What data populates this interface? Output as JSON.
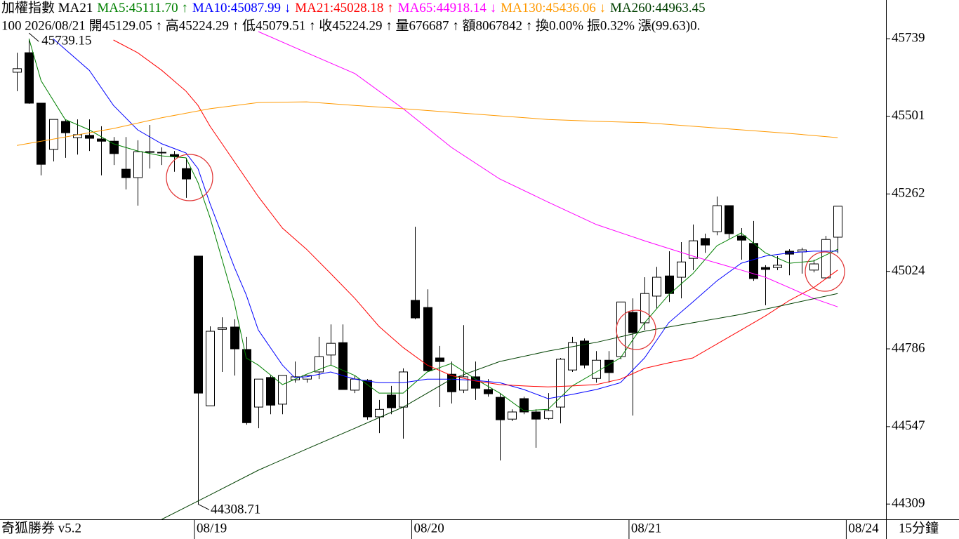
{
  "chart_data": {
    "type": "candlestick",
    "header": [
      {
        "text": "加權指數 MA21",
        "color": "#000000"
      },
      {
        "text": "MA5:45111.70 ↑",
        "color": "#008000"
      },
      {
        "text": "MA10:45087.99 ↓",
        "color": "#0000ff"
      },
      {
        "text": "MA21:45028.18 ↑",
        "color": "#ff0000"
      },
      {
        "text": "MA65:44918.14 ↓",
        "color": "#ff00ff"
      },
      {
        "text": "MA130:45436.06 ↓",
        "color": "#ff9900"
      },
      {
        "text": "MA260:44963.45",
        "color": "#004000"
      }
    ],
    "info": "100 2026/08/21 開45129.05 ↑ 高45224.29 ↑ 低45079.51 ↑ 收45224.29 ↑ 量676687 ↑ 額8067842 ↑ 換0.00% 振0.32% 漲(99.63)0.",
    "watermark": "奇狐勝券 v5.2",
    "period": "15分鐘",
    "annotations": [
      {
        "text": "45739.15",
        "value": 45739.15
      },
      {
        "text": "44308.71",
        "value": 44308.71
      }
    ],
    "up_color": "#ffffff",
    "down_color": "#000000",
    "open": [
      45636,
      45696,
      45541,
      45399,
      45485,
      45435,
      45442,
      45431,
      45424,
      45338,
      45312,
      45392,
      45390,
      45383,
      45340,
      45071,
      44611,
      44846,
      44853,
      44784,
      44607,
      44698,
      44616,
      44691,
      44693,
      44715,
      44767,
      44805,
      44659,
      44689,
      44577,
      44644,
      44607,
      44935,
      44913,
      44758,
      44708,
      44659,
      44700,
      44661,
      44637,
      44570,
      44633,
      44592,
      44572,
      44607,
      44721,
      44810,
      44695,
      44751,
      44762,
      44898,
      44866,
      44948,
      45010,
      45006,
      45064,
      45125,
      45146,
      45226,
      45133,
      45110,
      45036,
      45036,
      45086,
      45084,
      45028,
      45004,
      45129.05
    ],
    "high": [
      45696,
      45739.15,
      45541,
      45491,
      45491,
      45491,
      45491,
      45470,
      45437,
      45437,
      45427,
      45474,
      45405,
      45394,
      45373,
      45071,
      44855,
      44883,
      44877,
      44823,
      44693,
      44704,
      44704,
      44747,
      44704,
      44823,
      44861,
      44861,
      44704,
      44693,
      44629,
      44672,
      44726,
      45161,
      44969,
      44795,
      44747,
      44859,
      44747,
      44693,
      44650,
      44600,
      44639,
      44600,
      44650,
      44758,
      44823,
      44818,
      44779,
      44779,
      44930,
      44941,
      45006,
      45038,
      45086,
      45114,
      45168,
      45140,
      45254,
      45226,
      45157,
      45179,
      45043,
      45071,
      45092,
      45097,
      45060,
      45133,
      45224.29
    ],
    "low": [
      45578,
      45539,
      45319,
      45362,
      45373,
      45383,
      45394,
      45319,
      45351,
      45276,
      45226,
      45340,
      45351,
      45330,
      45250,
      44308.71,
      44611,
      44715,
      44704,
      44553,
      44542,
      44585,
      44585,
      44682,
      44682,
      44693,
      44736,
      44661,
      44650,
      44568,
      44527,
      44585,
      44510,
      44877,
      44715,
      44607,
      44618,
      44650,
      44629,
      44639,
      44443,
      44564,
      44585,
      44482,
      44568,
      44557,
      44715,
      44726,
      44682,
      44682,
      44754,
      44581,
      44844,
      44909,
      44930,
      44941,
      45028,
      45081,
      45135,
      45125,
      45060,
      44995,
      44920,
      45028,
      45012,
      45017,
      45021,
      45000,
      45079.51
    ],
    "close": [
      45647,
      45541,
      45353,
      45491,
      45450,
      45444,
      45433,
      45424,
      45386,
      45312,
      45392,
      45390,
      45388,
      45377,
      45308,
      44650,
      44840,
      44851,
      44786,
      44559,
      44693,
      44613,
      44704,
      44700,
      44704,
      44762,
      44803,
      44661,
      44693,
      44577,
      44600,
      44605,
      44715,
      44881,
      44719,
      44747,
      44654,
      44700,
      44665,
      44648,
      44568,
      44592,
      44592,
      44570,
      44596,
      44754,
      44805,
      44736,
      44751,
      44713,
      44930,
      44836,
      44956,
      45006,
      44956,
      45053,
      45118,
      45105,
      45226,
      45140,
      45120,
      45002,
      45030,
      45043,
      45077,
      45090,
      45047,
      45122,
      45224.29
    ],
    "series": [
      {
        "color": "#008000",
        "x": [
          1,
          2,
          4,
          6,
          8,
          10,
          12,
          14,
          15,
          16,
          17,
          18,
          19,
          20,
          22,
          24,
          26,
          28,
          30,
          32,
          34,
          36,
          38,
          40,
          42,
          44,
          46,
          48,
          50,
          52,
          54,
          56,
          58,
          60,
          62,
          64,
          66,
          68
        ],
        "values": [
          45739,
          45610,
          45491,
          45459,
          45416,
          45394,
          45379,
          45373,
          45297,
          45189,
          45060,
          44930,
          44758,
          44736,
          44676,
          44708,
          44736,
          44704,
          44650,
          44650,
          44715,
          44741,
          44693,
          44650,
          44596,
          44600,
          44672,
          44715,
          44758,
          44866,
          44952,
          45017,
          45103,
          45142,
          45081,
          45049,
          45056,
          45092
        ]
      },
      {
        "color": "#0000ff",
        "x": [
          3,
          6,
          8,
          10,
          12,
          14,
          15,
          16,
          17,
          18,
          19,
          20,
          22,
          23,
          24,
          26,
          28,
          30,
          32,
          34,
          36,
          38,
          40,
          42,
          44,
          46,
          48,
          50,
          52,
          54,
          56,
          58,
          60,
          62,
          64,
          66,
          68
        ],
        "values": [
          45739,
          45642,
          45534,
          45459,
          45416,
          45388,
          45340,
          45232,
          45135,
          45038,
          44952,
          44844,
          44736,
          44698,
          44700,
          44715,
          44693,
          44682,
          44682,
          44693,
          44693,
          44689,
          44682,
          44661,
          44633,
          44646,
          44661,
          44682,
          44758,
          44866,
          44930,
          44995,
          45049,
          45071,
          45081,
          45086,
          45086
        ]
      },
      {
        "color": "#ff0000",
        "x": [
          8,
          10,
          12,
          14,
          15,
          16,
          18,
          20,
          22,
          24,
          26,
          28,
          30,
          32,
          34,
          36,
          38,
          40,
          42,
          44,
          46,
          48,
          50,
          52,
          54,
          56,
          58,
          60,
          62,
          64,
          66,
          68
        ],
        "values": [
          45735,
          45696,
          45642,
          45578,
          45534,
          45470,
          45362,
          45254,
          45157,
          45092,
          45017,
          44941,
          44855,
          44790,
          44736,
          44704,
          44687,
          44676,
          44672,
          44669,
          44672,
          44676,
          44693,
          44726,
          44743,
          44758,
          44801,
          44844,
          44887,
          44935,
          44974,
          45028
        ]
      },
      {
        "color": "#ff00ff",
        "x": [
          20,
          24,
          28,
          32,
          36,
          40,
          44,
          48,
          52,
          56,
          60,
          62,
          64,
          66,
          68
        ],
        "values": [
          45761,
          45696,
          45632,
          45524,
          45405,
          45308,
          45237,
          45168,
          45118,
          45071,
          45028,
          45006,
          44974,
          44941,
          44915
        ]
      },
      {
        "color": "#ff9900",
        "x": [
          0,
          4,
          8,
          12,
          16,
          20,
          24,
          28,
          32,
          36,
          40,
          44,
          48,
          52,
          56,
          60,
          64,
          68
        ],
        "values": [
          45411,
          45437,
          45463,
          45496,
          45524,
          45543,
          45545,
          45534,
          45524,
          45513,
          45502,
          45491,
          45485,
          45481,
          45470,
          45459,
          45448,
          45435
        ]
      },
      {
        "color": "#004000",
        "x": [
          12,
          16,
          20,
          24,
          28,
          32,
          36,
          40,
          44,
          48,
          52,
          56,
          60,
          64,
          68
        ],
        "values": [
          44262,
          44337,
          44413,
          44478,
          44542,
          44607,
          44693,
          44747,
          44779,
          44806,
          44840,
          44866,
          44892,
          44924,
          44956
        ]
      }
    ],
    "xlim": [
      -1.4,
      72
    ],
    "xticks": [
      {
        "value": 15,
        "label": "08/19"
      },
      {
        "value": 33,
        "label": "08/20"
      },
      {
        "value": 51,
        "label": "08/21"
      },
      {
        "value": 69,
        "label": "08/24"
      }
    ],
    "ylim": [
      44262,
      45858
    ],
    "yticks": [
      44309,
      44547,
      44786,
      45024,
      45262,
      45501,
      45739
    ]
  }
}
